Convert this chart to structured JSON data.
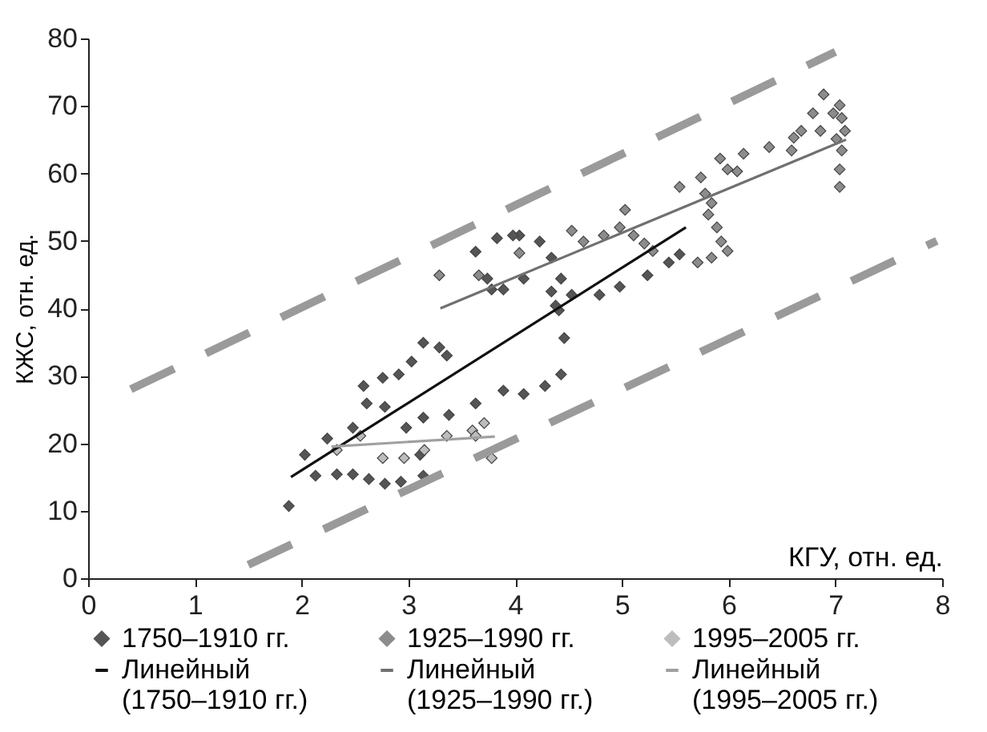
{
  "chart_data": {
    "type": "scatter",
    "xlabel": "КГУ, отн. ед.",
    "ylabel": "КЖС, отн. ед.",
    "xlim": [
      0,
      8
    ],
    "ylim": [
      0,
      80
    ],
    "xticks": [
      0,
      1,
      2,
      3,
      4,
      5,
      6,
      7,
      8
    ],
    "yticks": [
      0,
      10,
      20,
      30,
      40,
      50,
      60,
      70,
      80
    ],
    "grid": false,
    "legend": "bottom",
    "series": [
      {
        "name": "1750–1910 гг.",
        "marker": "diamond",
        "color": "#555555",
        "x": [
          1.88,
          2.13,
          2.03,
          2.24,
          2.48,
          2.61,
          2.78,
          2.98,
          3.11,
          3.14,
          2.93,
          2.78,
          2.63,
          2.48,
          2.33,
          3.14,
          3.38,
          3.63,
          3.89,
          4.08,
          4.28,
          4.43,
          4.46,
          4.41,
          4.34,
          4.53,
          4.79,
          4.98,
          5.24,
          5.44,
          5.54,
          4.38,
          4.08,
          3.78,
          3.89,
          3.74,
          3.63,
          3.83,
          4.04,
          3.98,
          4.23,
          4.34,
          4.43,
          2.58,
          2.76,
          2.91,
          3.03,
          3.14,
          3.29,
          3.36
        ],
        "values": [
          10.7,
          15.2,
          18.3,
          20.7,
          22.3,
          25.9,
          25.4,
          22.3,
          18.3,
          15.2,
          14.3,
          14,
          14.7,
          15.4,
          15.4,
          23.8,
          24.2,
          25.9,
          27.8,
          27.3,
          28.5,
          30.2,
          35.6,
          39.7,
          42.5,
          42,
          42,
          43.2,
          44.9,
          46.8,
          48,
          40.4,
          44.4,
          42.8,
          42.8,
          44.4,
          48.4,
          50.4,
          50.8,
          50.8,
          49.9,
          47.5,
          44.4,
          28.5,
          29.7,
          30.2,
          32.1,
          34.9,
          34.2,
          33
        ]
      },
      {
        "name": "1925–1990 гг.",
        "marker": "diamond",
        "color": "#8c8c8c",
        "x": [
          3.29,
          3.66,
          4.04,
          4.53,
          4.64,
          4.83,
          5.03,
          4.98,
          5.11,
          5.21,
          5.29,
          5.54,
          5.74,
          5.78,
          5.84,
          5.81,
          5.89,
          5.93,
          5.99,
          5.84,
          5.71,
          5.92,
          5.99,
          6.08,
          6.14,
          6.38,
          6.59,
          6.61,
          6.68,
          6.79,
          6.86,
          6.89,
          6.98,
          7.04,
          7.06,
          7.09,
          7.01,
          7.06,
          7.04,
          7.04
        ],
        "values": [
          44.9,
          44.9,
          48.2,
          51.5,
          49.9,
          50.8,
          54.6,
          52,
          50.8,
          49.6,
          48.5,
          58,
          59.4,
          57,
          55.6,
          53.9,
          52,
          49.9,
          48.5,
          47.5,
          46.8,
          62.2,
          60.6,
          60.3,
          62.9,
          63.9,
          63.4,
          65.3,
          66.3,
          68.9,
          66.3,
          71.7,
          68.9,
          70.1,
          68.2,
          66.3,
          65.1,
          63.4,
          60.6,
          58
        ]
      },
      {
        "name": "1995–2005 гг.",
        "marker": "diamond",
        "color": "#bdbdbd",
        "x": [
          2.33,
          2.55,
          2.76,
          2.96,
          3.15,
          3.36,
          3.6,
          3.71,
          3.63,
          3.78
        ],
        "values": [
          19,
          21.1,
          17.8,
          17.8,
          19,
          21.1,
          21.9,
          23,
          21.1,
          17.8
        ]
      },
      {
        "name": "Линейный (1750–1910 гг.)",
        "type": "line",
        "color": "#111111",
        "x": [
          1.9,
          5.6
        ],
        "values": [
          15,
          52
        ]
      },
      {
        "name": "Линейный (1925–1990 гг.)",
        "type": "line",
        "color": "#707070",
        "x": [
          3.3,
          7.1
        ],
        "values": [
          40,
          65
        ]
      },
      {
        "name": "Линейный (1995–2005 гг.)",
        "type": "line",
        "color": "#a0a0a0",
        "x": [
          2.28,
          3.81
        ],
        "values": [
          19.5,
          21
        ]
      },
      {
        "type": "line",
        "color": "#9a9a9a",
        "line_style": "dashed",
        "x": [
          0.4,
          7.0
        ],
        "values": [
          28,
          78
        ]
      },
      {
        "type": "line",
        "color": "#9a9a9a",
        "line_style": "dashed",
        "x": [
          1.5,
          7.95
        ],
        "values": [
          2,
          50
        ]
      }
    ]
  }
}
